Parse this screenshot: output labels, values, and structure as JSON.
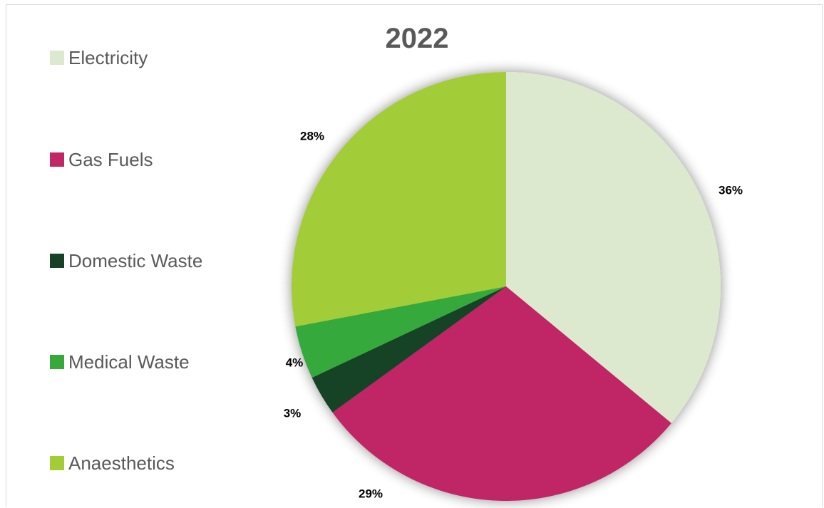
{
  "chart_data": {
    "type": "pie",
    "title": "2022",
    "categories": [
      "Electricity",
      "Gas Fuels",
      "Domestic Waste",
      "Medical Waste",
      "Anaesthetics"
    ],
    "values": [
      36,
      29,
      3,
      4,
      28
    ],
    "data_labels": [
      "36%",
      "29%",
      "3%",
      "4%",
      "28%"
    ],
    "colors": [
      "#dde9cf",
      "#c02766",
      "#184225",
      "#36a93a",
      "#a2cd37"
    ],
    "legend_position": "left"
  }
}
